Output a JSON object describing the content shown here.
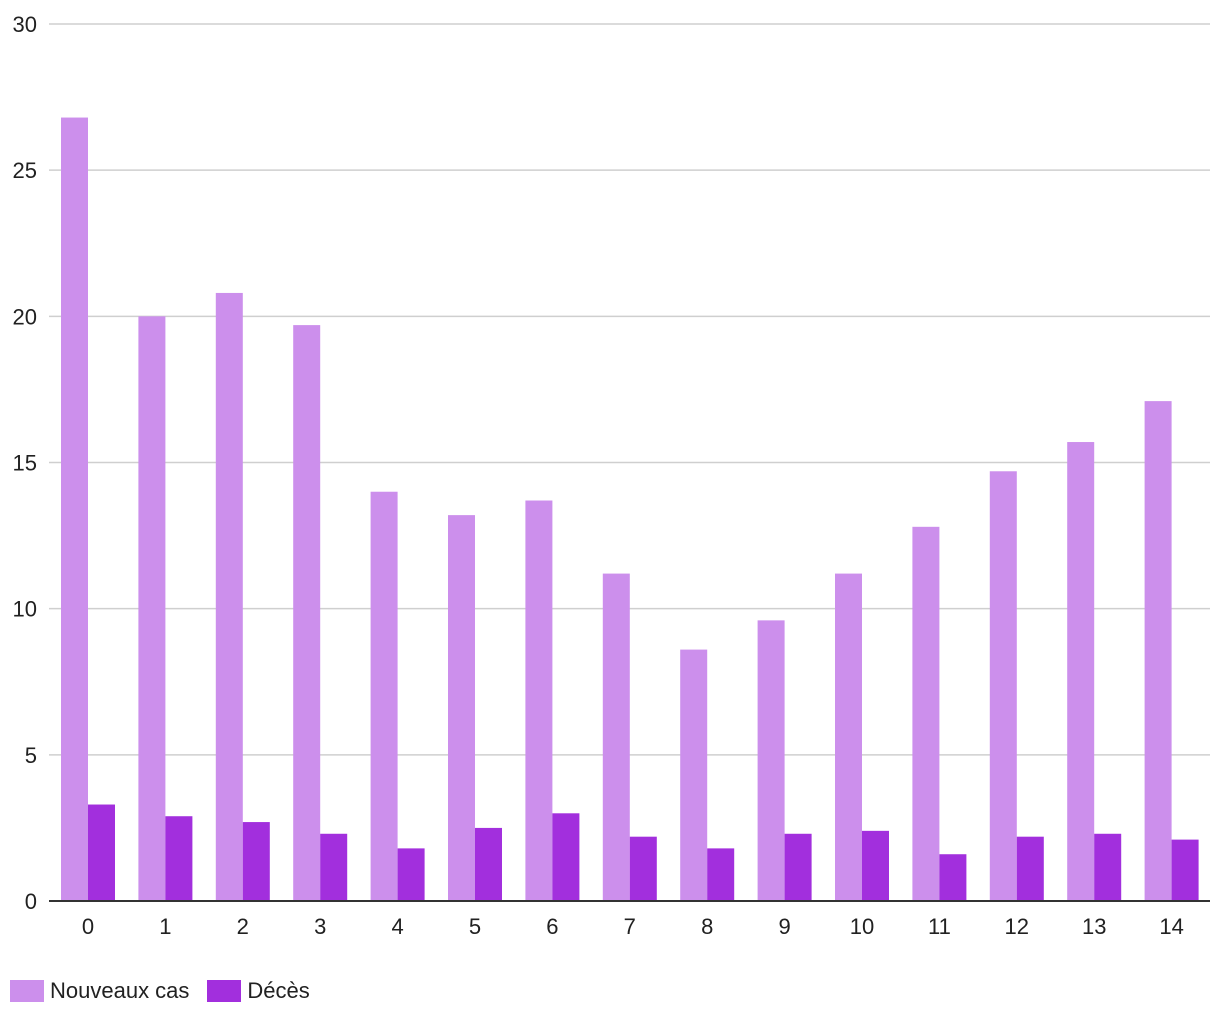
{
  "chart_data": {
    "type": "bar",
    "title": "",
    "xlabel": "",
    "ylabel": "",
    "categories": [
      "0",
      "1",
      "2",
      "3",
      "4",
      "5",
      "6",
      "7",
      "8",
      "9",
      "10",
      "11",
      "12",
      "13",
      "14"
    ],
    "series": [
      {
        "name": "Nouveaux cas",
        "color": "#cc8fec",
        "values": [
          26.8,
          20.0,
          20.8,
          19.7,
          14.0,
          13.2,
          13.7,
          11.2,
          8.6,
          9.6,
          11.2,
          12.8,
          14.7,
          15.7,
          17.1
        ]
      },
      {
        "name": "Décès",
        "color": "#a22fdd",
        "values": [
          3.3,
          2.9,
          2.7,
          2.3,
          1.8,
          2.5,
          3.0,
          2.2,
          1.8,
          2.3,
          2.4,
          1.6,
          2.2,
          2.3,
          2.1
        ]
      }
    ],
    "ylim": [
      0,
      30
    ],
    "yticks": [
      "0",
      "5",
      "10",
      "15",
      "20",
      "25",
      "30"
    ],
    "grid": true,
    "legend_position": "bottom-left"
  }
}
